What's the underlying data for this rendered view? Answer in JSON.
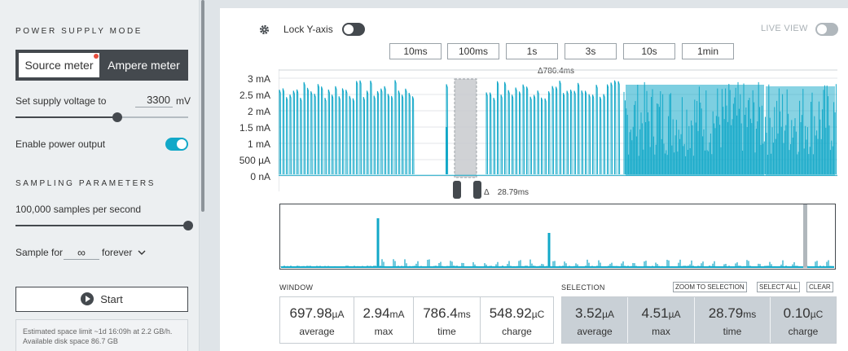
{
  "sidebar": {
    "power_supply_mode_title": "POWER SUPPLY MODE",
    "mode_source": "Source meter",
    "mode_ampere": "Ampere meter",
    "supply_voltage_label": "Set supply voltage to",
    "supply_voltage_value": "3300",
    "supply_voltage_unit": "mV",
    "supply_voltage_level": 0.59,
    "enable_power_label": "Enable power output",
    "enable_power_on": true,
    "sampling_title": "SAMPLING PARAMETERS",
    "sample_rate_label": "100,000 samples per second",
    "sample_rate_level": 1.0,
    "sample_for_label": "Sample for",
    "sample_for_value": "∞",
    "sample_for_unit": "forever",
    "start_label": "Start",
    "estimate_text": "Estimated space limit ~1d 16:09h at 2.2 GB/h. Available disk space 86.7 GB"
  },
  "toolbar": {
    "lock_y_label": "Lock Y-axis",
    "lock_y_on": false,
    "live_view_label": "LIVE VIEW",
    "live_view_on": false,
    "time_buttons": [
      "10ms",
      "100ms",
      "1s",
      "3s",
      "10s",
      "1min"
    ]
  },
  "chart": {
    "y_ticks": [
      "3 mA",
      "2.5 mA",
      "2 mA",
      "1.5 mA",
      "1 mA",
      "500 µA",
      "0 nA"
    ],
    "window_delta": "Δ786.4ms",
    "selection_delta_prefix": "Δ",
    "selection_delta": "28.79ms",
    "colors": {
      "trace": "#12a8c8",
      "selection": "#c8cbce",
      "handle": "#44494e"
    }
  },
  "chart_data": {
    "type": "line",
    "title": "",
    "xlabel": "",
    "ylabel": "",
    "ylim": [
      0,
      3
    ],
    "y_unit": "mA",
    "window_ms": 786.4,
    "series": [
      {
        "values": [
          2.6,
          0.02,
          2.5,
          0.02,
          2.55,
          0.02,
          2.5,
          0.02,
          2.6,
          0.02,
          2.55,
          0.02,
          2.5,
          0.02,
          2.58,
          0.02,
          2.5,
          0.02,
          2.6,
          0.02,
          0.02,
          0.02,
          0.02,
          0.02,
          1.5,
          0.02,
          0.02,
          0.02,
          2.5,
          0.02,
          2.55,
          0.02,
          2.6,
          0.02,
          2.5,
          0.02,
          2.9,
          2.5,
          2.8,
          2.4,
          2.94,
          2.6,
          2.85,
          2.5,
          2.8,
          2.4,
          2.9,
          2.5
        ]
      }
    ]
  },
  "window": {
    "title": "WINDOW",
    "stats": [
      {
        "value": "697.98",
        "unit": "µA",
        "name": "average"
      },
      {
        "value": "2.94",
        "unit": "mA",
        "name": "max"
      },
      {
        "value": "786.4",
        "unit": "ms",
        "name": "time"
      },
      {
        "value": "548.92",
        "unit": "µC",
        "name": "charge"
      }
    ]
  },
  "selection": {
    "title": "SELECTION",
    "zoom_label": "ZOOM TO SELECTION",
    "select_all_label": "SELECT ALL",
    "clear_label": "CLEAR",
    "stats": [
      {
        "value": "3.52",
        "unit": "µA",
        "name": "average"
      },
      {
        "value": "4.51",
        "unit": "µA",
        "name": "max"
      },
      {
        "value": "28.79",
        "unit": "ms",
        "name": "time"
      },
      {
        "value": "0.10",
        "unit": "µC",
        "name": "charge"
      }
    ]
  }
}
